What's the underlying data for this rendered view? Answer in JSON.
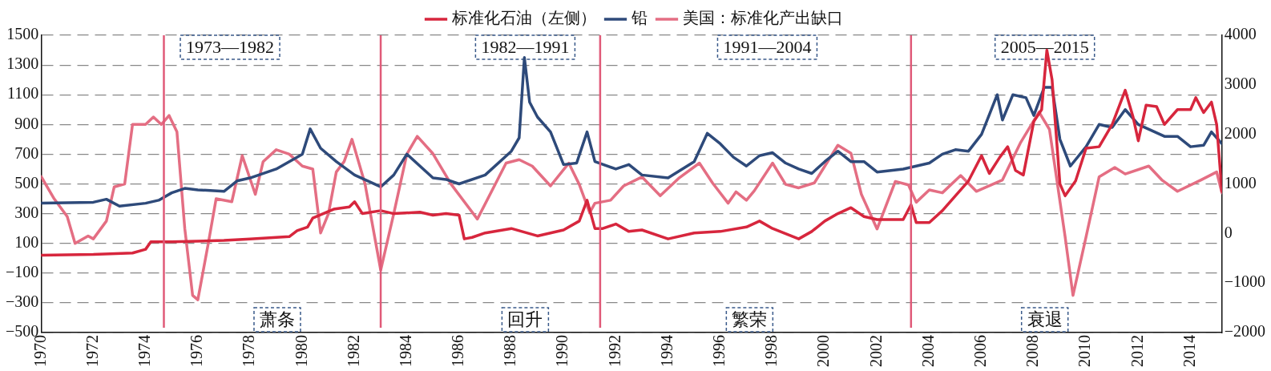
{
  "chart_data": {
    "type": "line",
    "xlim": [
      1970,
      2015.2
    ],
    "xticks": [
      1970,
      1972,
      1974,
      1976,
      1978,
      1980,
      1982,
      1984,
      1986,
      1988,
      1990,
      1992,
      1994,
      1996,
      1998,
      2000,
      2002,
      2004,
      2006,
      2008,
      2010,
      2012,
      2014
    ],
    "ylim": [
      -500,
      1500
    ],
    "yticks": [
      -500,
      -300,
      -100,
      100,
      300,
      500,
      700,
      900,
      1100,
      1300,
      1500
    ],
    "y2lim": [
      -2000,
      4000
    ],
    "y2ticks": [
      -2000,
      -1000,
      0,
      1000,
      2000,
      3000,
      4000
    ],
    "grid": "y",
    "legend": "top",
    "marker": "none",
    "line_style": "solid",
    "series": [
      {
        "name": "标准化石油（左侧）",
        "color": "#d7263d",
        "x": [
          1970,
          1972,
          1973.5,
          1974,
          1974.2,
          1975,
          1977,
          1978,
          1979.5,
          1979.8,
          1980.2,
          1980.4,
          1980.8,
          1981.2,
          1981.8,
          1982,
          1982.3,
          1983,
          1983.5,
          1984.5,
          1985,
          1985.5,
          1986,
          1986.2,
          1986.5,
          1987,
          1988,
          1989,
          1990,
          1990.6,
          1990.9,
          1991.2,
          1991.5,
          1992,
          1992.5,
          1993,
          1994,
          1995,
          1996,
          1997,
          1997.5,
          1998,
          1999,
          1999.5,
          2000,
          2000.5,
          2001,
          2001.5,
          2002,
          2003,
          2003.3,
          2003.5,
          2004,
          2004.5,
          2005,
          2005.5,
          2006,
          2006.3,
          2006.7,
          2007,
          2007.3,
          2007.6,
          2008,
          2008.3,
          2008.5,
          2008.7,
          2009,
          2009.2,
          2009.6,
          2010,
          2010.5,
          2011,
          2011.5,
          2011.8,
          2012,
          2012.3,
          2012.7,
          2013,
          2013.5,
          2014,
          2014.2,
          2014.5,
          2014.8,
          2015,
          2015.2
        ],
        "values": [
          20,
          25,
          35,
          60,
          110,
          110,
          120,
          130,
          145,
          185,
          210,
          270,
          300,
          330,
          345,
          380,
          300,
          320,
          300,
          310,
          290,
          300,
          290,
          130,
          140,
          170,
          200,
          150,
          190,
          250,
          390,
          200,
          200,
          230,
          180,
          190,
          130,
          170,
          180,
          210,
          250,
          200,
          130,
          180,
          250,
          300,
          340,
          280,
          260,
          260,
          360,
          240,
          240,
          320,
          420,
          520,
          690,
          570,
          680,
          750,
          590,
          560,
          920,
          1000,
          1400,
          1200,
          500,
          420,
          520,
          740,
          750,
          900,
          1130,
          950,
          790,
          1030,
          1020,
          900,
          1000,
          1000,
          1080,
          980,
          1050,
          900,
          450
        ]
      },
      {
        "name": "铅",
        "color": "#2e4a7a",
        "axis": "y2",
        "x": [
          1970,
          1972,
          1972.5,
          1973,
          1974,
          1974.5,
          1975,
          1975.5,
          1976,
          1977,
          1977.5,
          1978,
          1979,
          1980,
          1980.3,
          1980.7,
          1981.3,
          1982,
          1983,
          1983.5,
          1984,
          1985,
          1985.5,
          1986,
          1987,
          1988,
          1988.3,
          1988.5,
          1988.7,
          1989,
          1989.5,
          1990,
          1990.5,
          1990.9,
          1991.2,
          1992,
          1992.5,
          1993,
          1994,
          1995,
          1995.5,
          1996,
          1996.5,
          1997,
          1997.5,
          1998,
          1998.5,
          1999,
          1999.5,
          2000,
          2000.5,
          2001,
          2001.5,
          2002,
          2003,
          2004,
          2004.5,
          2005,
          2005.5,
          2006,
          2006.6,
          2006.8,
          2007.2,
          2007.7,
          2008,
          2008.4,
          2008.7,
          2009,
          2009.4,
          2010,
          2010.5,
          2011,
          2011.5,
          2012,
          2013,
          2013.5,
          2014,
          2014.5,
          2014.8,
          2015.2
        ],
        "values": [
          610,
          630,
          690,
          550,
          610,
          670,
          820,
          910,
          880,
          850,
          1060,
          1120,
          1300,
          1600,
          2110,
          1720,
          1450,
          1180,
          940,
          1180,
          1600,
          1120,
          1090,
          1000,
          1180,
          1660,
          1930,
          3550,
          2650,
          2350,
          2050,
          1390,
          1420,
          2050,
          1450,
          1300,
          1390,
          1180,
          1120,
          1450,
          2020,
          1810,
          1540,
          1360,
          1570,
          1630,
          1420,
          1300,
          1210,
          1450,
          1660,
          1450,
          1450,
          1240,
          1300,
          1420,
          1600,
          1690,
          1660,
          2000,
          2800,
          2290,
          2800,
          2740,
          2380,
          2950,
          2950,
          1900,
          1360,
          1750,
          2200,
          2140,
          2500,
          2200,
          1960,
          1960,
          1750,
          1780,
          2050,
          1810
        ]
      },
      {
        "name": "美国：标准化产出缺口",
        "color": "#e46e83",
        "axis": "y2",
        "x": [
          1970,
          1970.5,
          1971,
          1971.3,
          1971.8,
          1972,
          1972.5,
          1972.8,
          1973.2,
          1973.5,
          1974,
          1974.3,
          1974.6,
          1974.9,
          1975.2,
          1975.5,
          1975.8,
          1976,
          1976.4,
          1976.7,
          1977.3,
          1977.7,
          1978.2,
          1978.5,
          1979,
          1979.5,
          1980,
          1980.4,
          1980.7,
          1981,
          1981.3,
          1981.6,
          1981.9,
          1982.4,
          1983,
          1983.5,
          1984,
          1984.4,
          1985,
          1985.7,
          1986.7,
          1987.8,
          1988.3,
          1988.8,
          1989.5,
          1990.2,
          1990.6,
          1991,
          1991.2,
          1991.8,
          1992.3,
          1993,
          1993.7,
          1994.4,
          1995.2,
          1995.7,
          1996.3,
          1996.6,
          1997,
          1997.3,
          1998,
          1998.5,
          1999,
          1999.6,
          2000.5,
          2001,
          2001.4,
          2002,
          2002.7,
          2003.2,
          2003.5,
          2004,
          2004.5,
          2005.2,
          2005.8,
          2006.8,
          2007.5,
          2008.2,
          2008.6,
          2009.2,
          2009.5,
          2010,
          2010.5,
          2011.1,
          2011.5,
          2012.4,
          2012.9,
          2013.5,
          2014.4,
          2015,
          2015.2
        ],
        "values": [
          1150,
          700,
          340,
          -200,
          -50,
          -110,
          250,
          940,
          1000,
          2200,
          2200,
          2350,
          2200,
          2380,
          2050,
          100,
          -1250,
          -1340,
          -200,
          700,
          640,
          1570,
          790,
          1450,
          1690,
          1600,
          1360,
          1300,
          10,
          400,
          1240,
          1450,
          1900,
          1000,
          -740,
          400,
          1600,
          1960,
          1610,
          990,
          290,
          1420,
          1490,
          1360,
          960,
          1420,
          990,
          420,
          610,
          670,
          960,
          1140,
          760,
          1110,
          1420,
          1020,
          610,
          840,
          670,
          860,
          1420,
          990,
          920,
          1020,
          1780,
          1620,
          790,
          90,
          1050,
          980,
          630,
          880,
          820,
          1170,
          850,
          1080,
          1840,
          2450,
          2100,
          -70,
          -1250,
          -70,
          1140,
          1330,
          1200,
          1360,
          1080,
          850,
          1080,
          1240,
          820
        ]
      }
    ],
    "ref_lines": [
      {
        "axis": "x",
        "value": 1974.7,
        "color": "#e05a78"
      },
      {
        "axis": "x",
        "value": 1983,
        "color": "#e05a78"
      },
      {
        "axis": "x",
        "value": 1991.4,
        "color": "#e05a78"
      },
      {
        "axis": "x",
        "value": 2003.3,
        "color": "#e05a78"
      }
    ],
    "annotations": [
      "1973—1982",
      "1982—1991",
      "1991—2004",
      "2005—2015",
      "萧条",
      "回升",
      "繁荣",
      "衰退"
    ]
  }
}
